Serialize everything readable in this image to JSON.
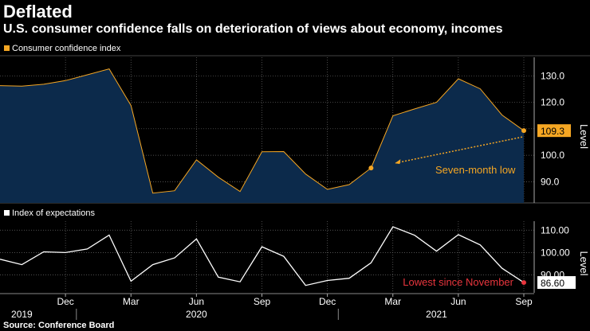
{
  "header": {
    "title": "Deflated",
    "subtitle": "U.S. consumer confidence falls on deterioration of views about economy, incomes"
  },
  "footer": {
    "source": "Source: Conference Board"
  },
  "colors": {
    "top_series": "#f5a623",
    "top_area": "#0c2a4b",
    "bottom_series": "#ffffff",
    "annotation_red": "#e8353d",
    "grid": "#6a6a6a"
  },
  "chart_data": [
    {
      "type": "area",
      "legend": "Consumer confidence index",
      "ylabel": "Level",
      "ylim": [
        82,
        137
      ],
      "yticks": [
        "90.0",
        "100.0",
        "110.0",
        "120.0",
        "130.0"
      ],
      "grid": true,
      "series": [
        {
          "name": "Consumer confidence index",
          "x": [
            "2019-09",
            "2019-10",
            "2019-11",
            "2019-12",
            "2020-01",
            "2020-02",
            "2020-03",
            "2020-04",
            "2020-05",
            "2020-06",
            "2020-07",
            "2020-08",
            "2020-09",
            "2020-10",
            "2020-11",
            "2020-12",
            "2021-01",
            "2021-02",
            "2021-03",
            "2021-04",
            "2021-05",
            "2021-06",
            "2021-07",
            "2021-08",
            "2021-09"
          ],
          "values": [
            126.3,
            126.1,
            126.8,
            128.2,
            130.4,
            132.6,
            118.8,
            85.7,
            86.6,
            98.3,
            91.7,
            86.3,
            101.3,
            101.4,
            92.9,
            87.1,
            88.9,
            95.2,
            114.9,
            117.5,
            120.0,
            128.9,
            125.1,
            115.2,
            109.3
          ]
        }
      ],
      "last_value_label": "109.3",
      "annotation": "Seven-month low"
    },
    {
      "type": "line",
      "legend": "Index of expectations",
      "ylabel": "Level",
      "ylim": [
        82,
        114
      ],
      "yticks": [
        "90.00",
        "100.00",
        "110.00"
      ],
      "grid": true,
      "series": [
        {
          "name": "Index of expectations",
          "x": [
            "2019-09",
            "2019-10",
            "2019-11",
            "2019-12",
            "2020-01",
            "2020-02",
            "2020-03",
            "2020-04",
            "2020-05",
            "2020-06",
            "2020-07",
            "2020-08",
            "2020-09",
            "2020-10",
            "2020-11",
            "2020-12",
            "2021-01",
            "2021-02",
            "2021-03",
            "2021-04",
            "2021-05",
            "2021-06",
            "2021-07",
            "2021-08",
            "2021-09"
          ],
          "values": [
            97.0,
            94.6,
            100.3,
            100.0,
            101.6,
            107.8,
            87.2,
            94.6,
            97.6,
            106.1,
            89.0,
            86.9,
            102.6,
            98.3,
            85.3,
            87.5,
            88.5,
            95.4,
            111.5,
            107.7,
            100.6,
            108.0,
            103.4,
            93.0,
            86.6
          ]
        }
      ],
      "last_value_label": "86.60",
      "annotation": "Lowest since November"
    }
  ],
  "xaxis": {
    "month_ticks": [
      {
        "label": "Dec",
        "x": "2019-12"
      },
      {
        "label": "Mar",
        "x": "2020-03"
      },
      {
        "label": "Jun",
        "x": "2020-06"
      },
      {
        "label": "Sep",
        "x": "2020-09"
      },
      {
        "label": "Dec",
        "x": "2020-12"
      },
      {
        "label": "Mar",
        "x": "2021-03"
      },
      {
        "label": "Jun",
        "x": "2021-06"
      },
      {
        "label": "Sep",
        "x": "2021-09"
      }
    ],
    "year_labels": [
      {
        "label": "2019",
        "x": "2019-10"
      },
      {
        "label": "2020",
        "x": "2020-06"
      },
      {
        "label": "2021",
        "x": "2021-05"
      }
    ]
  }
}
